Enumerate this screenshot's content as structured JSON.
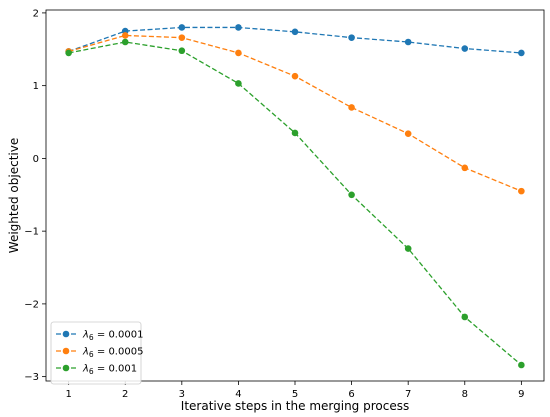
{
  "chart_data": {
    "type": "line",
    "xlabel": "Iterative steps in the merging process",
    "ylabel": "Weighted objective",
    "x": [
      1,
      2,
      3,
      4,
      5,
      6,
      7,
      8,
      9
    ],
    "xticks": [
      "1",
      "2",
      "3",
      "4",
      "5",
      "6",
      "7",
      "8",
      "9"
    ],
    "yticks": [
      {
        "value": 2,
        "label": "2"
      },
      {
        "value": 1,
        "label": "1"
      },
      {
        "value": 0,
        "label": "0"
      },
      {
        "value": -1,
        "label": "−1"
      },
      {
        "value": -2,
        "label": "−2"
      },
      {
        "value": -3,
        "label": "−3"
      }
    ],
    "xlim": [
      0.6,
      9.4
    ],
    "ylim": [
      -3.06,
      2.04
    ],
    "grid": false,
    "legend_position": "lower-left",
    "series": [
      {
        "name": "λ6 = 0.0001",
        "legend_base": "λ",
        "legend_sub": "6",
        "legend_value": " = 0.0001",
        "color": "#1f77b4",
        "values": [
          1.47,
          1.75,
          1.8,
          1.8,
          1.74,
          1.66,
          1.6,
          1.51,
          1.45
        ]
      },
      {
        "name": "λ6 = 0.0005",
        "legend_base": "λ",
        "legend_sub": "6",
        "legend_value": " = 0.0005",
        "color": "#ff7f0e",
        "values": [
          1.47,
          1.69,
          1.66,
          1.45,
          1.13,
          0.7,
          0.34,
          -0.13,
          -0.45
        ]
      },
      {
        "name": "λ6 = 0.001",
        "legend_base": "λ",
        "legend_sub": "6",
        "legend_value": " = 0.001",
        "color": "#2ca02c",
        "values": [
          1.45,
          1.6,
          1.48,
          1.03,
          0.35,
          -0.5,
          -1.24,
          -2.18,
          -2.84
        ]
      }
    ]
  }
}
